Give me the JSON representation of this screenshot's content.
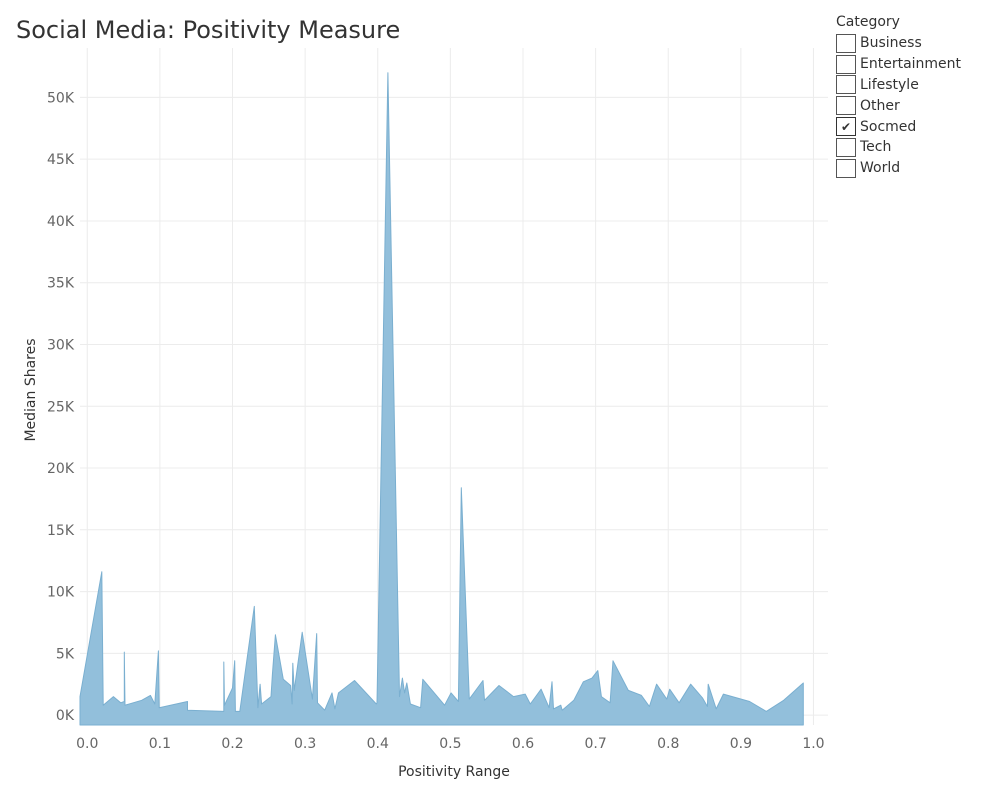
{
  "title": "Social Media: Positivity Measure",
  "legend": {
    "title": "Category",
    "items": [
      {
        "label": "Business",
        "checked": false
      },
      {
        "label": "Entertainment",
        "checked": false
      },
      {
        "label": "Lifestyle",
        "checked": false
      },
      {
        "label": "Other",
        "checked": false
      },
      {
        "label": "Socmed",
        "checked": true
      },
      {
        "label": "Tech",
        "checked": false
      },
      {
        "label": "World",
        "checked": false
      }
    ],
    "check_mark": "✔"
  },
  "colors": {
    "area_fill": "#92bfdb",
    "area_stroke": "#7aafd0",
    "grid": "#ececec",
    "tick_text": "#666666",
    "axis_label": "#333333"
  },
  "chart_data": {
    "type": "area",
    "title": "Social Media: Positivity Measure",
    "xlabel": "Positivity Range",
    "ylabel": "Median Shares",
    "xlim": [
      -0.01,
      1.02
    ],
    "ylim": [
      -800,
      54000
    ],
    "grid": true,
    "xticks": [
      {
        "value": 0.0,
        "label": "0.0"
      },
      {
        "value": 0.1,
        "label": "0.1"
      },
      {
        "value": 0.2,
        "label": "0.2"
      },
      {
        "value": 0.3,
        "label": "0.3"
      },
      {
        "value": 0.4,
        "label": "0.4"
      },
      {
        "value": 0.5,
        "label": "0.5"
      },
      {
        "value": 0.6,
        "label": "0.6"
      },
      {
        "value": 0.7,
        "label": "0.7"
      },
      {
        "value": 0.8,
        "label": "0.8"
      },
      {
        "value": 0.9,
        "label": "0.9"
      },
      {
        "value": 1.0,
        "label": "1.0"
      }
    ],
    "yticks": [
      {
        "value": 0,
        "label": "0K"
      },
      {
        "value": 5000,
        "label": "5K"
      },
      {
        "value": 10000,
        "label": "10K"
      },
      {
        "value": 15000,
        "label": "15K"
      },
      {
        "value": 20000,
        "label": "20K"
      },
      {
        "value": 25000,
        "label": "25K"
      },
      {
        "value": 30000,
        "label": "30K"
      },
      {
        "value": 35000,
        "label": "35K"
      },
      {
        "value": 40000,
        "label": "40K"
      },
      {
        "value": 45000,
        "label": "45K"
      },
      {
        "value": 50000,
        "label": "50K"
      }
    ],
    "points": [
      [
        -0.01,
        1500
      ],
      [
        0.02,
        11600
      ],
      [
        0.022,
        800
      ],
      [
        0.036,
        1500
      ],
      [
        0.046,
        1000
      ],
      [
        0.051,
        1100
      ],
      [
        0.051,
        5100
      ],
      [
        0.052,
        800
      ],
      [
        0.075,
        1200
      ],
      [
        0.087,
        1600
      ],
      [
        0.093,
        900
      ],
      [
        0.098,
        5200
      ],
      [
        0.099,
        600
      ],
      [
        0.138,
        1100
      ],
      [
        0.138,
        400
      ],
      [
        0.188,
        300
      ],
      [
        0.188,
        4300
      ],
      [
        0.189,
        800
      ],
      [
        0.2,
        2200
      ],
      [
        0.203,
        4400
      ],
      [
        0.204,
        300
      ],
      [
        0.21,
        300
      ],
      [
        0.23,
        8800
      ],
      [
        0.235,
        600
      ],
      [
        0.238,
        2500
      ],
      [
        0.24,
        900
      ],
      [
        0.253,
        1500
      ],
      [
        0.255,
        3300
      ],
      [
        0.259,
        6500
      ],
      [
        0.27,
        2900
      ],
      [
        0.28,
        2400
      ],
      [
        0.282,
        900
      ],
      [
        0.283,
        4200
      ],
      [
        0.285,
        2000
      ],
      [
        0.296,
        6700
      ],
      [
        0.31,
        1300
      ],
      [
        0.316,
        6600
      ],
      [
        0.317,
        1000
      ],
      [
        0.327,
        400
      ],
      [
        0.337,
        1800
      ],
      [
        0.341,
        500
      ],
      [
        0.346,
        1800
      ],
      [
        0.368,
        2800
      ],
      [
        0.398,
        900
      ],
      [
        0.399,
        1000
      ],
      [
        0.414,
        52000
      ],
      [
        0.43,
        1500
      ],
      [
        0.434,
        3000
      ],
      [
        0.437,
        1800
      ],
      [
        0.44,
        2600
      ],
      [
        0.445,
        900
      ],
      [
        0.459,
        600
      ],
      [
        0.462,
        2900
      ],
      [
        0.492,
        800
      ],
      [
        0.501,
        1800
      ],
      [
        0.511,
        1100
      ],
      [
        0.515,
        18400
      ],
      [
        0.526,
        1300
      ],
      [
        0.545,
        2800
      ],
      [
        0.547,
        1200
      ],
      [
        0.567,
        2400
      ],
      [
        0.587,
        1500
      ],
      [
        0.603,
        1700
      ],
      [
        0.61,
        900
      ],
      [
        0.625,
        2100
      ],
      [
        0.636,
        600
      ],
      [
        0.64,
        2700
      ],
      [
        0.642,
        500
      ],
      [
        0.652,
        800
      ],
      [
        0.654,
        400
      ],
      [
        0.67,
        1200
      ],
      [
        0.683,
        2700
      ],
      [
        0.695,
        3000
      ],
      [
        0.703,
        3600
      ],
      [
        0.708,
        1500
      ],
      [
        0.72,
        1000
      ],
      [
        0.724,
        4400
      ],
      [
        0.745,
        2000
      ],
      [
        0.763,
        1600
      ],
      [
        0.774,
        700
      ],
      [
        0.784,
        2500
      ],
      [
        0.798,
        1300
      ],
      [
        0.802,
        2100
      ],
      [
        0.815,
        1000
      ],
      [
        0.831,
        2500
      ],
      [
        0.847,
        1400
      ],
      [
        0.854,
        700
      ],
      [
        0.855,
        2500
      ],
      [
        0.866,
        500
      ],
      [
        0.876,
        1700
      ],
      [
        0.912,
        1100
      ],
      [
        0.935,
        300
      ],
      [
        0.959,
        1200
      ],
      [
        0.986,
        2600
      ]
    ]
  }
}
